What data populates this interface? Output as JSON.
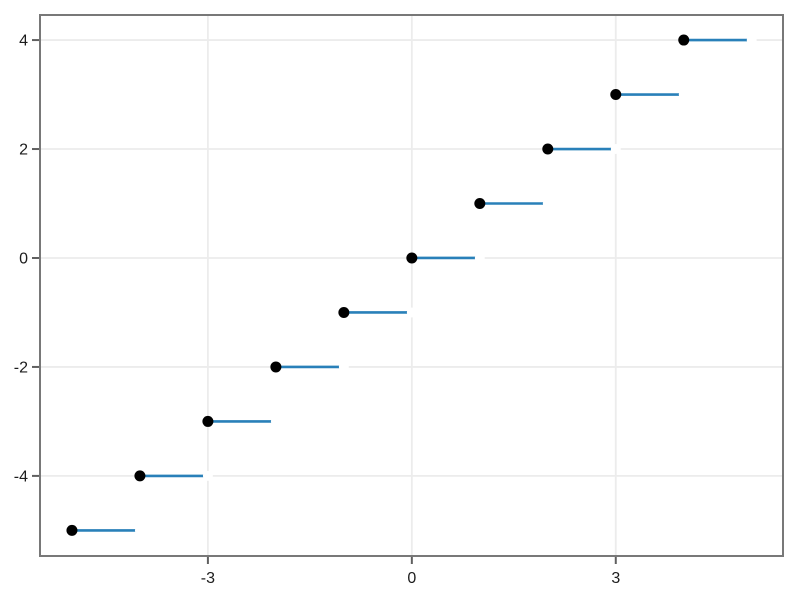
{
  "figure": {
    "background_color": "#ffffff"
  },
  "chart_data": {
    "type": "step",
    "title": "",
    "xlabel": "",
    "ylabel": "",
    "grid": true,
    "legend_position": "none",
    "xlim": [
      -5.47,
      5.46
    ],
    "ylim": [
      -5.47,
      4.46
    ],
    "xticks": [
      -3,
      0,
      3
    ],
    "xtick_labels": [
      "-3",
      "0",
      "3"
    ],
    "yticks": [
      -4,
      -2,
      0,
      2,
      4
    ],
    "ytick_labels": [
      "-4",
      "-2",
      "0",
      "2",
      "4"
    ],
    "description": "Step plot of y = floor(x): closed black dot at (n, n), blue horizontal segment from x=n to x=n+1, open white endpoint at (n+1, n)",
    "steps": [
      {
        "y": -5,
        "x_closed": -5,
        "x_open": -4
      },
      {
        "y": -4,
        "x_closed": -4,
        "x_open": -3
      },
      {
        "y": -3,
        "x_closed": -3,
        "x_open": -2
      },
      {
        "y": -2,
        "x_closed": -2,
        "x_open": -1
      },
      {
        "y": -1,
        "x_closed": -1,
        "x_open": 0
      },
      {
        "y": 0,
        "x_closed": 0,
        "x_open": 1
      },
      {
        "y": 1,
        "x_closed": 1,
        "x_open": 2
      },
      {
        "y": 2,
        "x_closed": 2,
        "x_open": 3
      },
      {
        "y": 3,
        "x_closed": 3,
        "x_open": 4
      },
      {
        "y": 4,
        "x_closed": 4,
        "x_open": 5
      }
    ],
    "style": {
      "line_color": "#2980b9",
      "line_width": 2.6,
      "closed_marker_color": "#000000",
      "closed_marker_radius": 5.5,
      "open_marker_color": "#ffffff",
      "open_marker_radius": 5,
      "grid_color": "#ececec",
      "grid_width": 1.8,
      "spine_color": "#787878",
      "spine_width": 2,
      "tick_color": "#606060",
      "tick_width": 2,
      "tick_length": 7,
      "tick_label_color": "#1c1c1c",
      "tick_label_size": 16
    }
  }
}
